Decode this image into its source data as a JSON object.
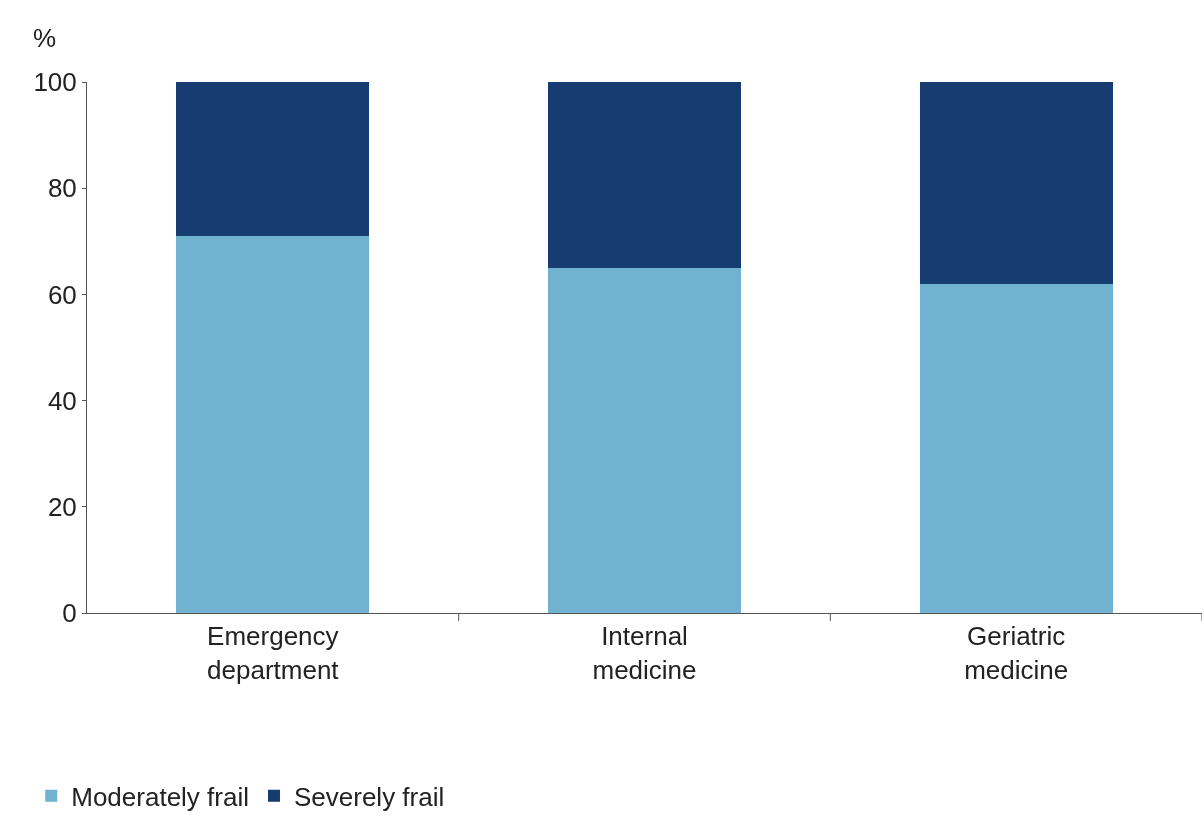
{
  "chart_data": {
    "type": "bar",
    "stacked": true,
    "ylabel": "%",
    "categories": [
      "Emergency department",
      "Internal medicine",
      "Geriatric medicine"
    ],
    "series": [
      {
        "name": "Moderately frail",
        "color": "#72b2d1",
        "values": [
          71,
          65,
          62
        ]
      },
      {
        "name": "Severely frail",
        "color": "#173c71",
        "values": [
          29,
          35,
          38
        ]
      }
    ],
    "ylim": [
      0,
      100
    ],
    "yticks": [
      0,
      20,
      40,
      60,
      80,
      100
    ],
    "legend": "bottom left"
  }
}
